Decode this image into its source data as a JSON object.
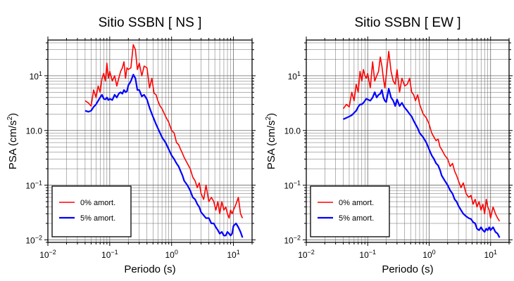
{
  "chart_data": [
    {
      "type": "line",
      "title": "Sitio SSBN [ NS ]",
      "xlabel": "Periodo (s)",
      "ylabel_main": "PSA (cm/s",
      "ylabel_sup": "2",
      "ylabel_tail": ")",
      "x_scale": "log",
      "y_scale": "log",
      "xlim": [
        0.01,
        20
      ],
      "ylim": [
        0.009,
        45
      ],
      "grid": true,
      "legend_position": "bottom-left",
      "x_ticks": [
        {
          "v": 0.01,
          "base": "10",
          "exp": "−2"
        },
        {
          "v": 0.1,
          "base": "10",
          "exp": "−1"
        },
        {
          "v": 1,
          "base": "10",
          "exp": "0"
        },
        {
          "v": 10,
          "base": "10",
          "exp": "1"
        }
      ],
      "y_ticks": [
        {
          "v": 0.01,
          "base": "10",
          "exp": "−2"
        },
        {
          "v": 0.1,
          "base": "10",
          "exp": "−1"
        },
        {
          "v": 1,
          "base": "1",
          "exp": "",
          "plain": "10.0"
        },
        {
          "v": 10,
          "base": "10",
          "exp": "1"
        }
      ],
      "series": [
        {
          "name": "0% amort.",
          "color": "#ff0000",
          "x": [
            0.04,
            0.045,
            0.05,
            0.055,
            0.06,
            0.065,
            0.07,
            0.075,
            0.08,
            0.085,
            0.09,
            0.095,
            0.1,
            0.11,
            0.12,
            0.13,
            0.14,
            0.15,
            0.16,
            0.17,
            0.18,
            0.19,
            0.2,
            0.22,
            0.24,
            0.26,
            0.28,
            0.3,
            0.33,
            0.36,
            0.4,
            0.44,
            0.48,
            0.52,
            0.56,
            0.6,
            0.65,
            0.7,
            0.8,
            0.9,
            1.0,
            1.1,
            1.2,
            1.3,
            1.4,
            1.5,
            1.6,
            1.8,
            2.0,
            2.2,
            2.4,
            2.6,
            2.8,
            3.0,
            3.3,
            3.6,
            4.0,
            4.4,
            4.8,
            5.2,
            5.6,
            6.0,
            6.5,
            7.0,
            7.5,
            8.0,
            8.5,
            9.0,
            9.5,
            10,
            11,
            12,
            13,
            14
          ],
          "y": [
            3.5,
            3.2,
            2.8,
            5.5,
            4,
            6.5,
            5,
            9,
            11,
            8,
            17,
            9,
            12,
            8,
            10,
            6.5,
            9,
            12,
            14,
            18,
            9,
            14,
            13,
            14,
            37,
            30,
            13,
            17,
            10,
            15,
            14,
            6,
            9,
            4.8,
            4.5,
            3.5,
            2.8,
            2.5,
            1.8,
            1.4,
            1.0,
            0.9,
            0.6,
            0.55,
            0.45,
            0.38,
            0.32,
            0.25,
            0.2,
            0.14,
            0.12,
            0.09,
            0.11,
            0.07,
            0.055,
            0.1,
            0.05,
            0.06,
            0.05,
            0.035,
            0.05,
            0.03,
            0.05,
            0.035,
            0.04,
            0.03,
            0.025,
            0.035,
            0.03,
            0.035,
            0.045,
            0.06,
            0.03,
            0.025
          ]
        },
        {
          "name": "5% amort.",
          "color": "#0000ff",
          "x": [
            0.04,
            0.045,
            0.05,
            0.055,
            0.06,
            0.065,
            0.07,
            0.075,
            0.08,
            0.085,
            0.09,
            0.095,
            0.1,
            0.11,
            0.12,
            0.13,
            0.14,
            0.15,
            0.16,
            0.17,
            0.18,
            0.19,
            0.2,
            0.22,
            0.24,
            0.26,
            0.28,
            0.3,
            0.33,
            0.36,
            0.4,
            0.44,
            0.48,
            0.52,
            0.56,
            0.6,
            0.65,
            0.7,
            0.8,
            0.9,
            1.0,
            1.1,
            1.2,
            1.3,
            1.4,
            1.5,
            1.6,
            1.8,
            2.0,
            2.2,
            2.4,
            2.6,
            2.8,
            3.0,
            3.3,
            3.6,
            4.0,
            4.4,
            4.8,
            5.2,
            5.6,
            6.0,
            6.5,
            7.0,
            7.5,
            8.0,
            8.5,
            9.0,
            9.5,
            10,
            11,
            12,
            13,
            14
          ],
          "y": [
            2.3,
            2.2,
            2.3,
            2.7,
            3,
            3.5,
            4,
            4.5,
            3.8,
            3.7,
            4,
            3.6,
            3.8,
            3.6,
            4.5,
            4,
            4.7,
            5,
            4.7,
            5.5,
            5,
            5.2,
            6.7,
            8,
            10.5,
            9,
            5.5,
            5.5,
            4.2,
            4.5,
            3.7,
            2.6,
            2,
            1.6,
            1.3,
            1.1,
            0.9,
            0.75,
            0.6,
            0.45,
            0.35,
            0.3,
            0.25,
            0.22,
            0.18,
            0.15,
            0.12,
            0.1,
            0.08,
            0.06,
            0.055,
            0.045,
            0.04,
            0.032,
            0.028,
            0.025,
            0.025,
            0.02,
            0.02,
            0.017,
            0.015,
            0.013,
            0.014,
            0.012,
            0.012,
            0.014,
            0.013,
            0.012,
            0.013,
            0.018,
            0.02,
            0.017,
            0.014,
            0.011
          ]
        }
      ]
    },
    {
      "type": "line",
      "title": "Sitio SSBN [ EW ]",
      "xlabel": "Periodo (s)",
      "ylabel_main": "PSA (cm/s",
      "ylabel_sup": "2",
      "ylabel_tail": ")",
      "x_scale": "log",
      "y_scale": "log",
      "xlim": [
        0.01,
        20
      ],
      "ylim": [
        0.009,
        45
      ],
      "grid": true,
      "legend_position": "bottom-left",
      "x_ticks": [
        {
          "v": 0.01,
          "base": "10",
          "exp": "−2"
        },
        {
          "v": 0.1,
          "base": "10",
          "exp": "−1"
        },
        {
          "v": 1,
          "base": "10",
          "exp": "0"
        },
        {
          "v": 10,
          "base": "10",
          "exp": "1"
        }
      ],
      "y_ticks": [
        {
          "v": 0.01,
          "base": "10",
          "exp": "−2"
        },
        {
          "v": 0.1,
          "base": "10",
          "exp": "−1"
        },
        {
          "v": 1,
          "base": "1",
          "exp": "",
          "plain": "10.0"
        },
        {
          "v": 10,
          "base": "10",
          "exp": "1"
        }
      ],
      "series": [
        {
          "name": "0% amort.",
          "color": "#ff0000",
          "x": [
            0.04,
            0.045,
            0.05,
            0.055,
            0.06,
            0.065,
            0.07,
            0.075,
            0.08,
            0.085,
            0.09,
            0.095,
            0.1,
            0.11,
            0.12,
            0.13,
            0.14,
            0.15,
            0.16,
            0.17,
            0.18,
            0.19,
            0.2,
            0.22,
            0.24,
            0.26,
            0.28,
            0.3,
            0.33,
            0.36,
            0.4,
            0.44,
            0.48,
            0.52,
            0.56,
            0.6,
            0.65,
            0.7,
            0.8,
            0.9,
            1.0,
            1.1,
            1.2,
            1.3,
            1.4,
            1.5,
            1.6,
            1.8,
            2.0,
            2.2,
            2.4,
            2.6,
            2.8,
            3.0,
            3.3,
            3.6,
            4.0,
            4.4,
            4.8,
            5.2,
            5.6,
            6.0,
            6.5,
            7.0,
            7.5,
            8.0,
            8.5,
            9.0,
            9.5,
            10,
            11,
            12,
            13,
            14
          ],
          "y": [
            2.5,
            3,
            2.7,
            5,
            3.5,
            7,
            5,
            12,
            8,
            13,
            10,
            9,
            11,
            6,
            18,
            8,
            10,
            12,
            22,
            15,
            9,
            6,
            10,
            28,
            12,
            8,
            7,
            13,
            5,
            9,
            6.5,
            7,
            9,
            5,
            4.5,
            3.5,
            4.5,
            3,
            2,
            1.7,
            1.3,
            0.9,
            0.75,
            0.65,
            0.7,
            0.5,
            0.45,
            0.35,
            0.3,
            0.22,
            0.25,
            0.18,
            0.15,
            0.12,
            0.09,
            0.11,
            0.07,
            0.06,
            0.065,
            0.045,
            0.055,
            0.04,
            0.05,
            0.035,
            0.045,
            0.03,
            0.055,
            0.04,
            0.035,
            0.025,
            0.04,
            0.03,
            0.025,
            0.022
          ]
        },
        {
          "name": "5% amort.",
          "color": "#0000ff",
          "x": [
            0.04,
            0.045,
            0.05,
            0.055,
            0.06,
            0.065,
            0.07,
            0.075,
            0.08,
            0.085,
            0.09,
            0.095,
            0.1,
            0.11,
            0.12,
            0.13,
            0.14,
            0.15,
            0.16,
            0.17,
            0.18,
            0.19,
            0.2,
            0.22,
            0.24,
            0.26,
            0.28,
            0.3,
            0.33,
            0.36,
            0.4,
            0.44,
            0.48,
            0.52,
            0.56,
            0.6,
            0.65,
            0.7,
            0.8,
            0.9,
            1.0,
            1.1,
            1.2,
            1.3,
            1.4,
            1.5,
            1.6,
            1.8,
            2.0,
            2.2,
            2.4,
            2.6,
            2.8,
            3.0,
            3.3,
            3.6,
            4.0,
            4.4,
            4.8,
            5.2,
            5.6,
            6.0,
            6.5,
            7.0,
            7.5,
            8.0,
            8.5,
            9.0,
            9.5,
            10,
            11,
            12,
            13,
            14
          ],
          "y": [
            1.6,
            1.7,
            1.8,
            1.9,
            2.1,
            2.3,
            2.7,
            3,
            3,
            3.2,
            3.5,
            3.8,
            3.7,
            3.5,
            4,
            5,
            4,
            4.5,
            4.7,
            5.5,
            4,
            3.5,
            3.3,
            5.8,
            4,
            3.5,
            2.8,
            3.7,
            2.8,
            3.2,
            2.6,
            2.3,
            2,
            1.8,
            1.5,
            1.3,
            1.1,
            0.9,
            0.75,
            0.6,
            0.45,
            0.35,
            0.3,
            0.25,
            0.23,
            0.19,
            0.15,
            0.12,
            0.1,
            0.08,
            0.07,
            0.055,
            0.05,
            0.042,
            0.035,
            0.03,
            0.027,
            0.025,
            0.024,
            0.021,
            0.02,
            0.016,
            0.015,
            0.017,
            0.015,
            0.014,
            0.016,
            0.015,
            0.017,
            0.015,
            0.017,
            0.014,
            0.013,
            0.011
          ]
        }
      ]
    }
  ]
}
